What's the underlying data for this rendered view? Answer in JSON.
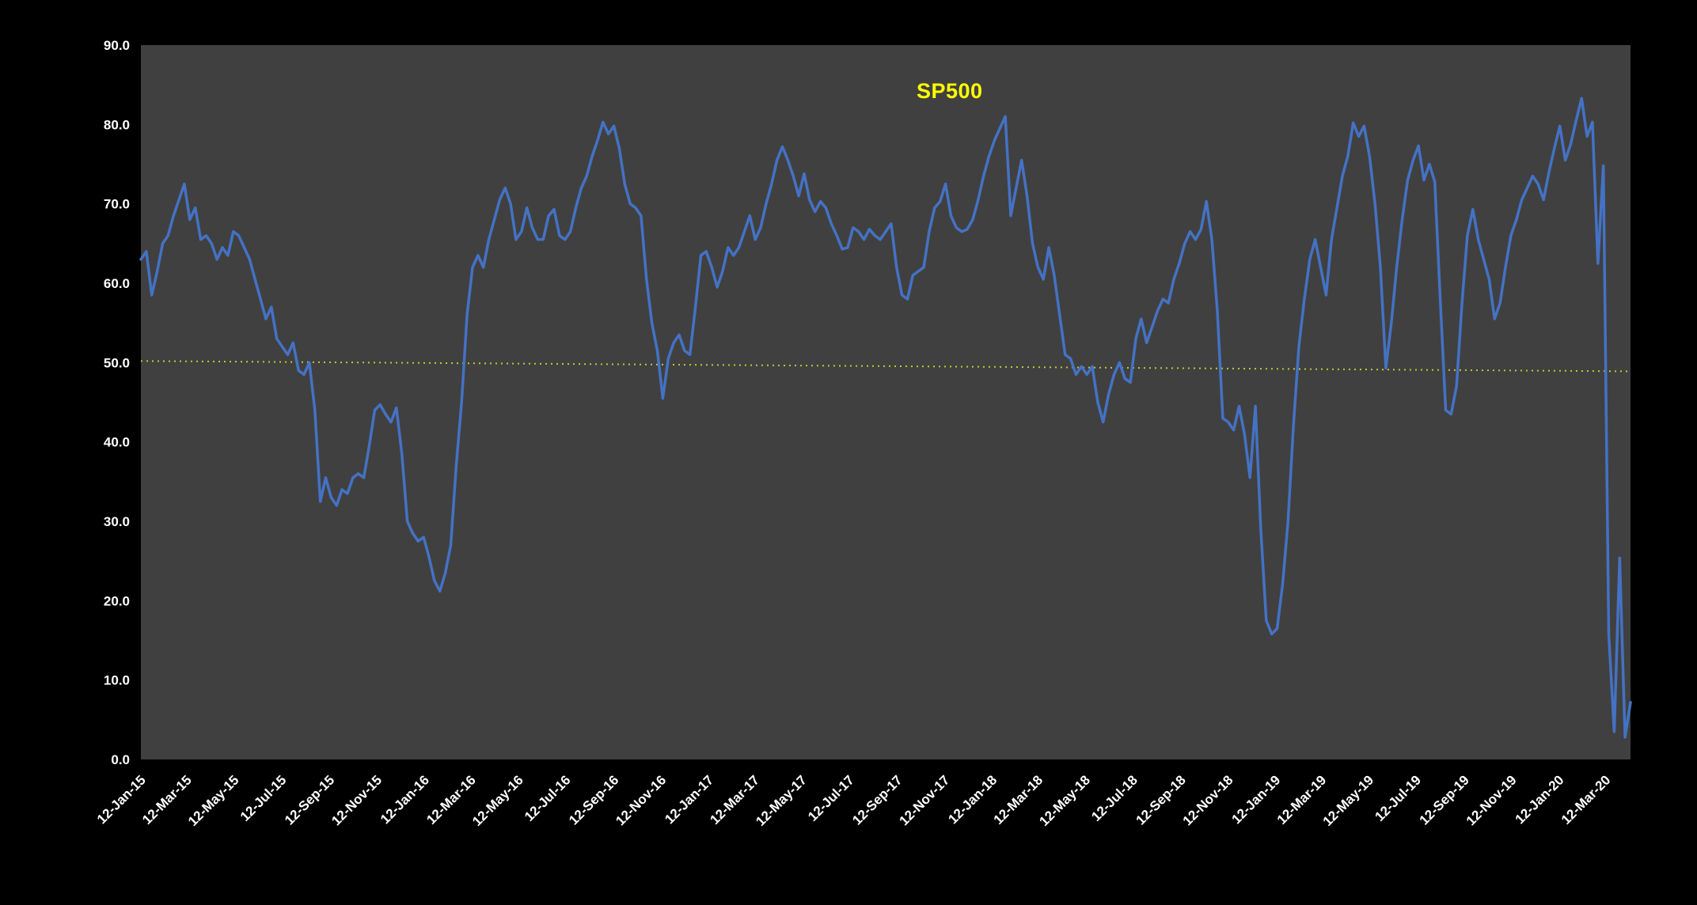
{
  "chart": {
    "page_bg": "#000000",
    "plot_bg": "#404040",
    "line_color": "#4472C4",
    "axis_text_color": "#FFFFFF",
    "annotation_color": "#FFFF00",
    "trendline": {
      "start_value": 50.2,
      "end_value": 48.9,
      "color": "#BFCC33",
      "style": "dotted"
    }
  },
  "chart_data": {
    "type": "line",
    "title": "",
    "xlabel": "",
    "ylabel": "",
    "ylim": [
      0,
      90
    ],
    "grid": false,
    "legend_position": "none",
    "annotation": {
      "text": "SP500",
      "y_value": 85
    },
    "y_tick_labels": [
      "0.0",
      "10.0",
      "20.0",
      "30.0",
      "40.0",
      "50.0",
      "60.0",
      "70.0",
      "80.0",
      "90.0"
    ],
    "x_tick_labels": [
      "12-Jan-15",
      "12-Mar-15",
      "12-May-15",
      "12-Jul-15",
      "12-Sep-15",
      "12-Nov-15",
      "12-Jan-16",
      "12-Mar-16",
      "12-May-16",
      "12-Jul-16",
      "12-Sep-16",
      "12-Nov-16",
      "12-Jan-17",
      "12-Mar-17",
      "12-May-17",
      "12-Jul-17",
      "12-Sep-17",
      "12-Nov-17",
      "12-Jan-18",
      "12-Mar-18",
      "12-May-18",
      "12-Jul-18",
      "12-Sep-18",
      "12-Nov-18",
      "12-Jan-19",
      "12-Mar-19",
      "12-May-19",
      "12-Jul-19",
      "12-Sep-19",
      "12-Nov-19",
      "12-Jan-20",
      "12-Mar-20"
    ],
    "x_tick_positions_weeks": [
      0,
      8.43,
      17.14,
      25.86,
      34.71,
      43.43,
      52.14,
      60.71,
      69.43,
      78.14,
      87,
      95.71,
      104.43,
      112.86,
      121.57,
      130.29,
      139.14,
      147.86,
      156.57,
      165,
      173.71,
      182.43,
      191.29,
      200,
      208.71,
      217.14,
      225.86,
      234.57,
      243.43,
      252.14,
      260.86,
      269.43
    ],
    "x_unit": "weeks since 12-Jan-15",
    "series": [
      {
        "name": "SP500",
        "values": [
          63,
          64,
          58.5,
          61.5,
          65,
          66,
          68.5,
          70.5,
          72.5,
          68,
          69.5,
          65.5,
          66,
          65,
          63,
          64.5,
          63.5,
          66.5,
          66,
          64.5,
          63,
          60.5,
          58,
          55.5,
          57,
          53,
          52,
          51,
          52.5,
          49,
          48.5,
          50,
          44,
          32.5,
          35.5,
          33,
          32,
          34,
          33.5,
          35.5,
          36,
          35.5,
          39.5,
          44,
          44.7,
          43.5,
          42.5,
          44.3,
          38.5,
          30,
          28.5,
          27.5,
          28,
          25.5,
          22.5,
          21.2,
          23.5,
          27,
          37,
          45,
          56,
          62,
          63.5,
          62,
          65.5,
          68,
          70.5,
          72,
          70,
          65.5,
          66.5,
          69.5,
          67,
          65.5,
          65.5,
          68.5,
          69.3,
          66,
          65.5,
          66.5,
          69.5,
          72,
          73.5,
          76,
          78,
          80.3,
          78.8,
          79.8,
          77,
          72.5,
          70,
          69.5,
          68.5,
          60.5,
          55,
          51.5,
          45.5,
          50.5,
          52.5,
          53.5,
          51.5,
          51,
          57,
          63.5,
          64,
          62,
          59.5,
          61.5,
          64.5,
          63.5,
          64.5,
          66.5,
          68.5,
          65.5,
          67,
          70,
          72.5,
          75.5,
          77.2,
          75.5,
          73.5,
          71,
          73.8,
          70.5,
          69,
          70.3,
          69.5,
          67.5,
          66,
          64.3,
          64.5,
          67,
          66.5,
          65.5,
          66.8,
          66,
          65.5,
          66.5,
          67.5,
          62,
          58.5,
          58,
          61,
          61.5,
          62,
          66.5,
          69.5,
          70.3,
          72.5,
          68.5,
          67,
          66.5,
          66.8,
          68,
          70.5,
          73.5,
          76,
          78,
          79.5,
          81,
          68.5,
          72,
          75.5,
          71,
          65,
          62,
          60.5,
          64.5,
          61,
          56,
          51,
          50.5,
          48.5,
          49.5,
          48.5,
          49.5,
          45,
          42.5,
          46,
          48.5,
          50,
          48,
          47.5,
          53,
          55.5,
          52.5,
          54.5,
          56.5,
          58,
          57.5,
          60.5,
          62.5,
          65,
          66.5,
          65.5,
          66.8,
          70.3,
          65.5,
          56.5,
          43,
          42.5,
          41.5,
          44.5,
          41,
          35.5,
          44.5,
          29,
          17.5,
          15.8,
          16.5,
          22,
          30,
          42,
          52,
          58,
          63,
          65.5,
          62,
          58.5,
          65.5,
          69.5,
          73.5,
          76,
          80.2,
          78.5,
          79.8,
          76,
          70,
          62,
          49.3,
          55,
          62,
          68,
          73,
          75.5,
          77.3,
          73,
          75,
          72.8,
          58,
          44,
          43.5,
          47,
          57.5,
          66,
          69.3,
          65.5,
          63,
          60.5,
          55.5,
          57.5,
          62,
          66,
          68,
          70.5,
          72,
          73.5,
          72.5,
          70.5,
          74,
          77,
          79.8,
          75.5,
          77.5,
          80.5,
          83.3,
          78.5,
          80.3,
          62.5,
          74.8,
          15.8,
          3.5,
          25.4,
          2.8,
          7.2
        ]
      }
    ]
  }
}
